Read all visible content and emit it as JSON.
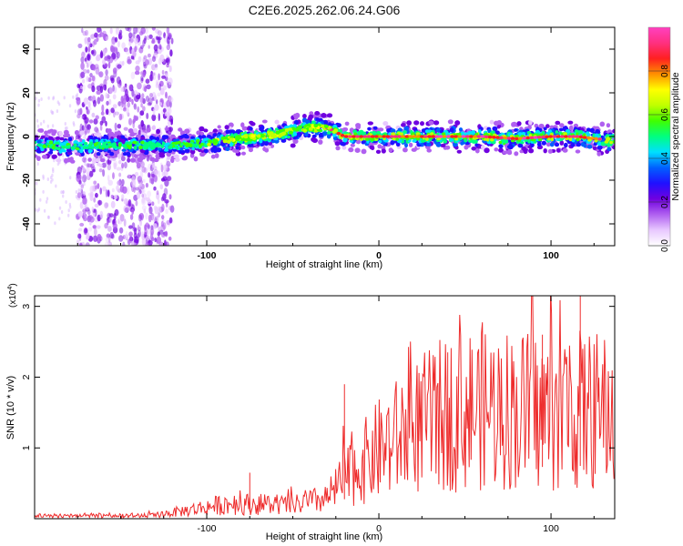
{
  "title": "C2E6.2025.262.06.24.G06",
  "chart_data": [
    {
      "type": "heatmap",
      "name": "spectrogram",
      "xlabel": "Height of straight line (km)",
      "ylabel": "Frequency (Hz)",
      "xlim": [
        -200,
        137
      ],
      "ylim": [
        -50,
        50
      ],
      "xticks": [
        -100,
        0,
        100
      ],
      "yticks": [
        -40,
        -20,
        0,
        20,
        40
      ],
      "colorbar": {
        "label": "Normalized spectral amplitude",
        "range": [
          0,
          1
        ],
        "ticks": [
          "0.0",
          "0.2",
          "0.4",
          "0.6",
          "0.8"
        ],
        "colors": [
          "#ffffff",
          "#e8c8ff",
          "#b060f0",
          "#7000e0",
          "#2010ff",
          "#0060ff",
          "#00e0ff",
          "#00ff80",
          "#40ff00",
          "#c0ff00",
          "#ffff00",
          "#ff9000",
          "#ff2020",
          "#ff3080",
          "#ff40c0"
        ]
      },
      "ridge": {
        "x": [
          -200,
          -180,
          -160,
          -140,
          -120,
          -100,
          -80,
          -60,
          -40,
          -30,
          -20,
          0,
          20,
          40,
          60,
          80,
          100,
          115,
          137
        ],
        "freq": [
          -3,
          -5,
          -4,
          -4,
          -4,
          -3,
          -1,
          1,
          4,
          4,
          0,
          0,
          0,
          0,
          0,
          -1,
          0,
          0,
          -2
        ]
      },
      "noise_band_x": [
        -175,
        -120
      ]
    },
    {
      "type": "line",
      "name": "snr",
      "xlabel": "Height of straight line (km)",
      "ylabel": "SNR (10 * v/v)",
      "scale_label": "(x10",
      "scale_exp": "4",
      "xlim": [
        -200,
        137
      ],
      "ylim": [
        0,
        3.15
      ],
      "xticks": [
        -100,
        0,
        100
      ],
      "yticks": [
        1,
        2,
        3
      ],
      "color": "#ee2b2b",
      "envelope": {
        "x": [
          -200,
          -160,
          -130,
          -110,
          -90,
          -70,
          -50,
          -30,
          -20,
          -10,
          0,
          20,
          40,
          60,
          80,
          100,
          120,
          137
        ],
        "y": [
          0.05,
          0.03,
          0.05,
          0.12,
          0.2,
          0.2,
          0.18,
          0.28,
          0.55,
          0.75,
          0.95,
          1.25,
          1.45,
          1.55,
          1.5,
          1.45,
          1.5,
          1.45
        ]
      },
      "spikes": [
        {
          "x": -75,
          "y": 0.65
        },
        {
          "x": -20,
          "y": 1.9
        },
        {
          "x": 40,
          "y": 2.35
        },
        {
          "x": 95,
          "y": 2.6
        },
        {
          "x": 117,
          "y": 3.15
        }
      ]
    }
  ]
}
